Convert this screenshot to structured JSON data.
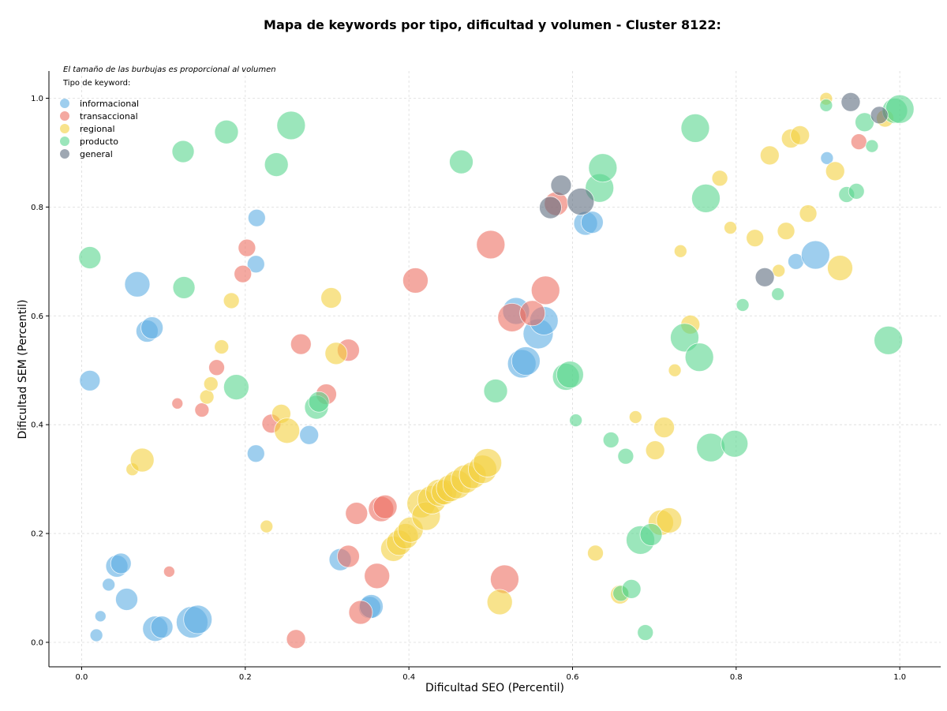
{
  "chart_data": {
    "type": "scatter",
    "title": "Mapa de keywords por tipo, dificultad y volumen - Cluster 8122:",
    "xlabel": "Dificultad SEO (Percentil)",
    "ylabel": "Dificultad SEM (Percentil)",
    "xlim": [
      -0.04,
      1.05
    ],
    "ylim": [
      -0.045,
      1.05
    ],
    "xticks": [
      "0.0",
      "0.2",
      "0.4",
      "0.6",
      "0.8",
      "1.0"
    ],
    "yticks": [
      "0.0",
      "0.2",
      "0.4",
      "0.6",
      "0.8",
      "1.0"
    ],
    "grid": true,
    "legend_position": "top-left",
    "note": "El tamaño de las burbujas es proporcional al volumen",
    "legend_title": "Tipo de keyword:",
    "series": [
      {
        "name": "informacional",
        "color": "#5DADE2",
        "points": [
          [
            0.018,
            0.013,
            8
          ],
          [
            0.023,
            0.048,
            7
          ],
          [
            0.033,
            0.106,
            8
          ],
          [
            0.043,
            0.14,
            14
          ],
          [
            0.048,
            0.145,
            13
          ],
          [
            0.055,
            0.079,
            14
          ],
          [
            0.09,
            0.025,
            16
          ],
          [
            0.098,
            0.028,
            14
          ],
          [
            0.135,
            0.037,
            20
          ],
          [
            0.142,
            0.042,
            18
          ],
          [
            0.01,
            0.481,
            13
          ],
          [
            0.068,
            0.658,
            16
          ],
          [
            0.08,
            0.572,
            14
          ],
          [
            0.086,
            0.578,
            14
          ],
          [
            0.213,
            0.347,
            11
          ],
          [
            0.213,
            0.695,
            11
          ],
          [
            0.214,
            0.78,
            11
          ],
          [
            0.278,
            0.381,
            12
          ],
          [
            0.316,
            0.152,
            14
          ],
          [
            0.352,
            0.064,
            14
          ],
          [
            0.354,
            0.066,
            15
          ],
          [
            0.531,
            0.609,
            17
          ],
          [
            0.538,
            0.512,
            18
          ],
          [
            0.543,
            0.517,
            18
          ],
          [
            0.558,
            0.567,
            19
          ],
          [
            0.565,
            0.591,
            18
          ],
          [
            0.616,
            0.77,
            15
          ],
          [
            0.624,
            0.772,
            14
          ],
          [
            0.873,
            0.7,
            10
          ],
          [
            0.897,
            0.712,
            18
          ],
          [
            0.911,
            0.89,
            8
          ]
        ]
      },
      {
        "name": "transaccional",
        "color": "#EC7063",
        "points": [
          [
            0.107,
            0.13,
            7
          ],
          [
            0.117,
            0.439,
            7
          ],
          [
            0.147,
            0.427,
            9
          ],
          [
            0.165,
            0.505,
            10
          ],
          [
            0.197,
            0.677,
            11
          ],
          [
            0.202,
            0.725,
            11
          ],
          [
            0.232,
            0.402,
            12
          ],
          [
            0.268,
            0.548,
            13
          ],
          [
            0.262,
            0.006,
            12
          ],
          [
            0.299,
            0.456,
            13
          ],
          [
            0.326,
            0.537,
            14
          ],
          [
            0.326,
            0.158,
            14
          ],
          [
            0.336,
            0.237,
            14
          ],
          [
            0.341,
            0.055,
            15
          ],
          [
            0.361,
            0.122,
            16
          ],
          [
            0.366,
            0.245,
            16
          ],
          [
            0.371,
            0.249,
            15
          ],
          [
            0.408,
            0.665,
            16
          ],
          [
            0.5,
            0.731,
            18
          ],
          [
            0.517,
            0.116,
            18
          ],
          [
            0.526,
            0.597,
            18
          ],
          [
            0.551,
            0.605,
            16
          ],
          [
            0.567,
            0.647,
            18
          ],
          [
            0.58,
            0.806,
            15
          ],
          [
            0.95,
            0.92,
            10
          ]
        ]
      },
      {
        "name": "regional",
        "color": "#F4D03F",
        "points": [
          [
            0.062,
            0.318,
            8
          ],
          [
            0.074,
            0.335,
            15
          ],
          [
            0.153,
            0.451,
            9
          ],
          [
            0.158,
            0.475,
            9
          ],
          [
            0.171,
            0.543,
            9
          ],
          [
            0.183,
            0.628,
            10
          ],
          [
            0.226,
            0.213,
            8
          ],
          [
            0.244,
            0.42,
            12
          ],
          [
            0.251,
            0.389,
            16
          ],
          [
            0.305,
            0.633,
            13
          ],
          [
            0.311,
            0.531,
            14
          ],
          [
            0.381,
            0.172,
            16
          ],
          [
            0.388,
            0.183,
            16
          ],
          [
            0.396,
            0.195,
            16
          ],
          [
            0.402,
            0.207,
            16
          ],
          [
            0.415,
            0.255,
            18
          ],
          [
            0.421,
            0.232,
            18
          ],
          [
            0.428,
            0.262,
            18
          ],
          [
            0.437,
            0.275,
            17
          ],
          [
            0.443,
            0.276,
            16
          ],
          [
            0.45,
            0.283,
            17
          ],
          [
            0.459,
            0.29,
            18
          ],
          [
            0.469,
            0.3,
            18
          ],
          [
            0.478,
            0.307,
            17
          ],
          [
            0.49,
            0.318,
            18
          ],
          [
            0.496,
            0.33,
            18
          ],
          [
            0.511,
            0.074,
            16
          ],
          [
            0.628,
            0.164,
            10
          ],
          [
            0.658,
            0.088,
            12
          ],
          [
            0.677,
            0.414,
            8
          ],
          [
            0.701,
            0.353,
            12
          ],
          [
            0.712,
            0.395,
            13
          ],
          [
            0.708,
            0.22,
            16
          ],
          [
            0.718,
            0.224,
            16
          ],
          [
            0.725,
            0.5,
            8
          ],
          [
            0.732,
            0.719,
            8
          ],
          [
            0.744,
            0.584,
            12
          ],
          [
            0.78,
            0.853,
            10
          ],
          [
            0.793,
            0.762,
            8
          ],
          [
            0.823,
            0.743,
            11
          ],
          [
            0.841,
            0.895,
            12
          ],
          [
            0.852,
            0.683,
            8
          ],
          [
            0.861,
            0.756,
            11
          ],
          [
            0.867,
            0.926,
            12
          ],
          [
            0.878,
            0.932,
            12
          ],
          [
            0.888,
            0.788,
            11
          ],
          [
            0.921,
            0.866,
            12
          ],
          [
            0.927,
            0.688,
            16
          ],
          [
            0.91,
            0.999,
            8
          ],
          [
            0.982,
            0.963,
            11
          ]
        ]
      },
      {
        "name": "producto",
        "color": "#58D68D",
        "points": [
          [
            0.01,
            0.707,
            14
          ],
          [
            0.124,
            0.902,
            14
          ],
          [
            0.125,
            0.652,
            14
          ],
          [
            0.177,
            0.938,
            15
          ],
          [
            0.189,
            0.469,
            16
          ],
          [
            0.238,
            0.878,
            15
          ],
          [
            0.256,
            0.95,
            18
          ],
          [
            0.287,
            0.432,
            15
          ],
          [
            0.29,
            0.442,
            13
          ],
          [
            0.464,
            0.883,
            15
          ],
          [
            0.506,
            0.462,
            15
          ],
          [
            0.592,
            0.488,
            17
          ],
          [
            0.597,
            0.492,
            17
          ],
          [
            0.604,
            0.408,
            8
          ],
          [
            0.633,
            0.835,
            18
          ],
          [
            0.637,
            0.872,
            18
          ],
          [
            0.647,
            0.372,
            10
          ],
          [
            0.659,
            0.09,
            10
          ],
          [
            0.665,
            0.342,
            10
          ],
          [
            0.672,
            0.098,
            12
          ],
          [
            0.683,
            0.188,
            18
          ],
          [
            0.689,
            0.018,
            10
          ],
          [
            0.696,
            0.198,
            14
          ],
          [
            0.737,
            0.56,
            18
          ],
          [
            0.75,
            0.945,
            18
          ],
          [
            0.755,
            0.524,
            18
          ],
          [
            0.763,
            0.816,
            18
          ],
          [
            0.769,
            0.358,
            18
          ],
          [
            0.798,
            0.365,
            17
          ],
          [
            0.808,
            0.62,
            8
          ],
          [
            0.851,
            0.64,
            8
          ],
          [
            0.91,
            0.987,
            8
          ],
          [
            0.935,
            0.823,
            10
          ],
          [
            0.947,
            0.829,
            10
          ],
          [
            0.957,
            0.956,
            12
          ],
          [
            0.966,
            0.912,
            8
          ],
          [
            0.986,
            0.555,
            18
          ],
          [
            0.994,
            0.977,
            16
          ],
          [
            1.0,
            0.98,
            18
          ]
        ]
      },
      {
        "name": "general",
        "color": "#5D6D7E",
        "points": [
          [
            0.573,
            0.799,
            14
          ],
          [
            0.586,
            0.84,
            13
          ],
          [
            0.61,
            0.81,
            17
          ],
          [
            0.835,
            0.671,
            12
          ],
          [
            0.94,
            0.993,
            12
          ],
          [
            0.975,
            0.969,
            11
          ]
        ]
      }
    ]
  }
}
